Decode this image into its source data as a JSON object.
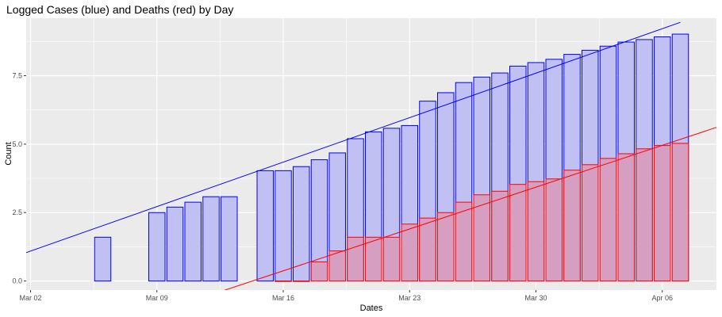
{
  "chart_data": {
    "type": "bar",
    "title": "Logged Cases (blue) and Deaths (red) by Day",
    "xlabel": "Dates",
    "ylabel": "Count",
    "x_tick_labels": [
      "Mar 02",
      "Mar 09",
      "Mar 16",
      "Mar 23",
      "Mar 30",
      "Apr 06"
    ],
    "y_tick_labels": [
      "0.0",
      "2.5",
      "5.0",
      "7.5"
    ],
    "y_ticks": [
      0,
      2.5,
      5,
      7.5
    ],
    "ylim": [
      -0.33,
      9.6
    ],
    "grid": true,
    "colors": {
      "panel_background": "#ebebeb",
      "gridline": "#ffffff",
      "cases_fill": "#c0c0f2",
      "cases_stroke": "#0000ff",
      "deaths_fill": "#d69ec0",
      "deaths_stroke": "#ff0000"
    },
    "series": [
      {
        "key": "cases",
        "x": [
          "Mar 06",
          "Mar 09",
          "Mar 10",
          "Mar 11",
          "Mar 12",
          "Mar 13",
          "Mar 15",
          "Mar 16",
          "Mar 17",
          "Mar 18",
          "Mar 19",
          "Mar 20",
          "Mar 21",
          "Mar 22",
          "Mar 23",
          "Mar 24",
          "Mar 25",
          "Mar 26",
          "Mar 27",
          "Mar 28",
          "Mar 29",
          "Mar 30",
          "Mar 31",
          "Apr 01",
          "Apr 02",
          "Apr 03",
          "Apr 04",
          "Apr 05",
          "Apr 06",
          "Apr 07"
        ],
        "values": [
          1.6,
          2.5,
          2.7,
          2.88,
          3.08,
          3.08,
          4.03,
          4.03,
          4.18,
          4.43,
          4.68,
          5.2,
          5.45,
          5.58,
          5.68,
          6.57,
          6.88,
          7.25,
          7.45,
          7.6,
          7.85,
          7.98,
          8.1,
          8.28,
          8.43,
          8.58,
          8.73,
          8.82,
          8.92,
          9.02
        ]
      },
      {
        "key": "deaths",
        "x": [
          "Mar 16",
          "Mar 17",
          "Mar 18",
          "Mar 19",
          "Mar 20",
          "Mar 21",
          "Mar 22",
          "Mar 23",
          "Mar 24",
          "Mar 25",
          "Mar 26",
          "Mar 27",
          "Mar 28",
          "Mar 29",
          "Mar 30",
          "Mar 31",
          "Apr 01",
          "Apr 02",
          "Apr 03",
          "Apr 04",
          "Apr 05",
          "Apr 06",
          "Apr 07"
        ],
        "values": [
          0,
          0,
          0.7,
          1.1,
          1.6,
          1.6,
          1.6,
          2.08,
          2.3,
          2.5,
          2.88,
          3.15,
          3.28,
          3.53,
          3.63,
          3.73,
          4.05,
          4.25,
          4.48,
          4.65,
          4.83,
          4.95,
          5.03
        ]
      }
    ],
    "trend_lines": [
      {
        "key": "cases",
        "points": [
          [
            "Feb 29",
            0.63
          ],
          [
            "Apr 07",
            9.45
          ]
        ]
      },
      {
        "key": "deaths",
        "points": [
          [
            "Mar 12",
            -0.5
          ],
          [
            "Apr 10",
            5.83
          ]
        ]
      }
    ]
  }
}
